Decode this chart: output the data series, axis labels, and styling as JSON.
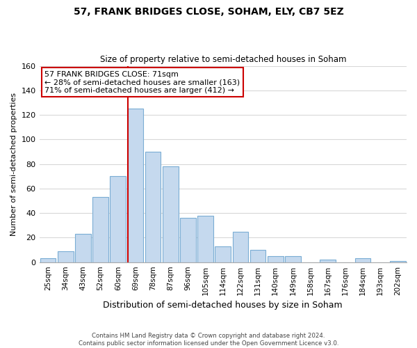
{
  "title": "57, FRANK BRIDGES CLOSE, SOHAM, ELY, CB7 5EZ",
  "subtitle": "Size of property relative to semi-detached houses in Soham",
  "xlabel": "Distribution of semi-detached houses by size in Soham",
  "ylabel": "Number of semi-detached properties",
  "bar_labels": [
    "25sqm",
    "34sqm",
    "43sqm",
    "52sqm",
    "60sqm",
    "69sqm",
    "78sqm",
    "87sqm",
    "96sqm",
    "105sqm",
    "114sqm",
    "122sqm",
    "131sqm",
    "140sqm",
    "149sqm",
    "158sqm",
    "167sqm",
    "176sqm",
    "184sqm",
    "193sqm",
    "202sqm"
  ],
  "bar_values": [
    3,
    9,
    23,
    53,
    70,
    125,
    90,
    78,
    36,
    38,
    13,
    25,
    10,
    5,
    5,
    0,
    2,
    0,
    3,
    0,
    1
  ],
  "bar_color": "#c5d9ee",
  "bar_edge_color": "#7aadd4",
  "highlight_bar_index": 5,
  "highlight_line_color": "#cc0000",
  "annotation_text_line1": "57 FRANK BRIDGES CLOSE: 71sqm",
  "annotation_text_line2": "← 28% of semi-detached houses are smaller (163)",
  "annotation_text_line3": "71% of semi-detached houses are larger (412) →",
  "ylim": [
    0,
    160
  ],
  "yticks": [
    0,
    20,
    40,
    60,
    80,
    100,
    120,
    140,
    160
  ],
  "footer_line1": "Contains HM Land Registry data © Crown copyright and database right 2024.",
  "footer_line2": "Contains public sector information licensed under the Open Government Licence v3.0.",
  "background_color": "#ffffff",
  "grid_color": "#d8d8d8"
}
